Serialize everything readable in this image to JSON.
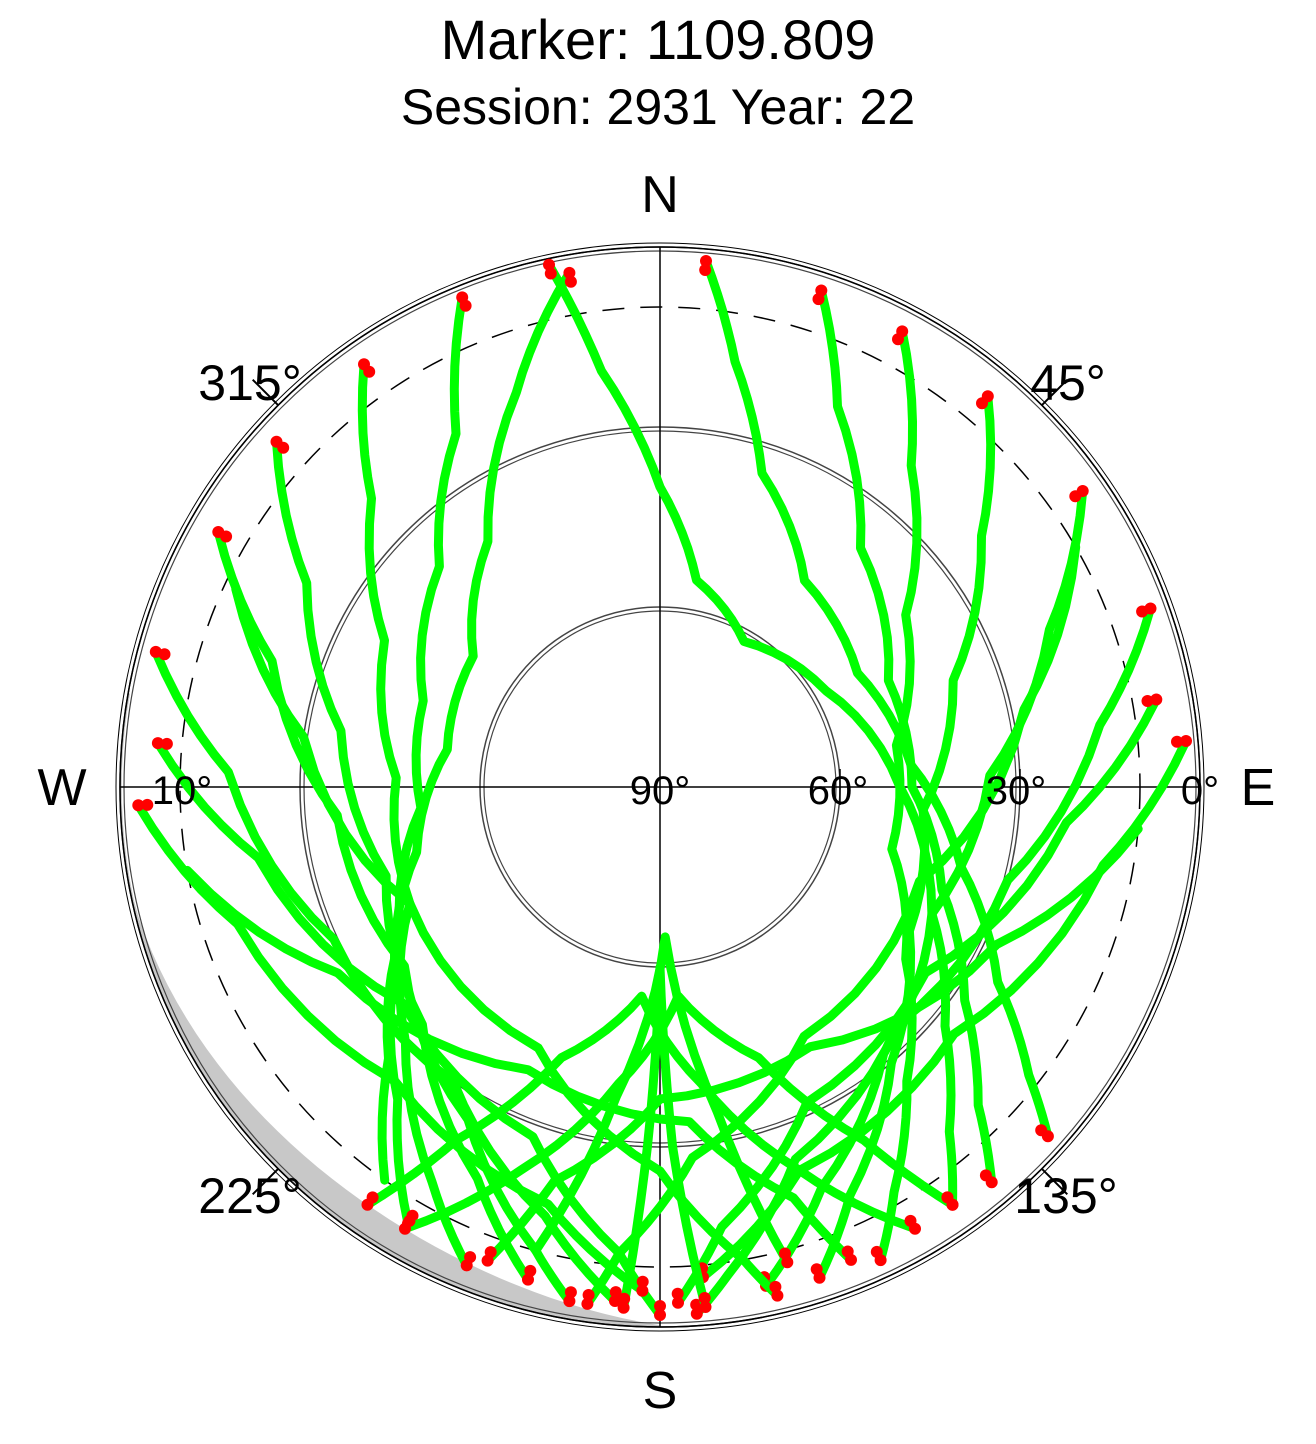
{
  "chart_data": {
    "type": "scatter",
    "title": "Marker: 1109.809",
    "subtitle": "Session: 2931 Year: 22",
    "projection": "polar skyplot (azimuth / elevation)",
    "compass": {
      "north": "N",
      "east": "E",
      "south": "S",
      "west": "W"
    },
    "azimuth_labels": [
      "45°",
      "135°",
      "225°",
      "315°"
    ],
    "elevation_labels": [
      "0°",
      "30°",
      "60°",
      "90°",
      "10°"
    ],
    "elevation_rings": [
      0,
      30,
      60
    ],
    "elevation_mask_deg": 10,
    "grid": true,
    "colors": {
      "tracked": "#00ff00",
      "low_elevation": "#ff0000",
      "horizon_obstruction": "#c8c8c8",
      "grid": "#000000"
    },
    "series": [
      {
        "color": "tracked",
        "description_values": "satellite tracks (az°, el°)",
        "tracks": [
          [
            [
              -12,
              1
            ],
            [
              -8,
              20
            ],
            [
              0,
              40
            ],
            [
              10,
              55
            ],
            [
              30,
              62
            ],
            [
              60,
              58
            ],
            [
              90,
              50
            ],
            [
              115,
              40
            ],
            [
              130,
              28
            ],
            [
              140,
              15
            ],
            [
              145,
              5
            ]
          ],
          [
            [
              5,
              2
            ],
            [
              10,
              18
            ],
            [
              18,
              35
            ],
            [
              35,
              48
            ],
            [
              60,
              52
            ],
            [
              85,
              48
            ],
            [
              105,
              38
            ],
            [
              120,
              25
            ],
            [
              128,
              12
            ],
            [
              132,
              3
            ]
          ],
          [
            [
              18,
              3
            ],
            [
              25,
              20
            ],
            [
              40,
              38
            ],
            [
              65,
              48
            ],
            [
              90,
              48
            ],
            [
              110,
              40
            ],
            [
              125,
              28
            ],
            [
              135,
              15
            ],
            [
              140,
              4
            ]
          ],
          [
            [
              28,
              4
            ],
            [
              38,
              22
            ],
            [
              55,
              40
            ],
            [
              80,
              50
            ],
            [
              105,
              50
            ],
            [
              125,
              40
            ],
            [
              140,
              26
            ],
            [
              150,
              12
            ],
            [
              155,
              3
            ]
          ],
          [
            [
              40,
              5
            ],
            [
              52,
              22
            ],
            [
              70,
              38
            ],
            [
              95,
              46
            ],
            [
              120,
              42
            ],
            [
              140,
              30
            ],
            [
              155,
              15
            ],
            [
              162,
              4
            ]
          ],
          [
            [
              55,
              4
            ],
            [
              68,
              20
            ],
            [
              88,
              35
            ],
            [
              115,
              40
            ],
            [
              140,
              32
            ],
            [
              158,
              18
            ],
            [
              168,
              5
            ]
          ],
          [
            [
              70,
              3
            ],
            [
              82,
              16
            ],
            [
              105,
              30
            ],
            [
              135,
              34
            ],
            [
              160,
              24
            ],
            [
              172,
              8
            ],
            [
              176,
              2
            ]
          ],
          [
            [
              80,
              6
            ],
            [
              95,
              22
            ],
            [
              125,
              36
            ],
            [
              155,
              32
            ],
            [
              172,
              16
            ],
            [
              178,
              4
            ]
          ],
          [
            [
              85,
              2
            ],
            [
              100,
              15
            ],
            [
              130,
              26
            ],
            [
              160,
              22
            ],
            [
              175,
              8
            ]
          ],
          [
            [
              60,
              10
            ],
            [
              78,
              28
            ],
            [
              110,
              44
            ],
            [
              150,
              42
            ],
            [
              175,
              28
            ],
            [
              185,
              12
            ],
            [
              188,
              3
            ]
          ],
          [
            [
              95,
              10
            ],
            [
              115,
              28
            ],
            [
              150,
              40
            ],
            [
              180,
              38
            ],
            [
              195,
              22
            ],
            [
              200,
              6
            ]
          ],
          [
            [
              -10,
              3
            ],
            [
              -20,
              20
            ],
            [
              -35,
              40
            ],
            [
              -55,
              52
            ],
            [
              -80,
              54
            ],
            [
              -105,
              48
            ],
            [
              -125,
              36
            ],
            [
              -140,
              22
            ],
            [
              -150,
              6
            ]
          ],
          [
            [
              -22,
              2
            ],
            [
              -30,
              22
            ],
            [
              -45,
              38
            ],
            [
              -70,
              48
            ],
            [
              -95,
              50
            ],
            [
              -120,
              40
            ],
            [
              -135,
              26
            ],
            [
              -145,
              10
            ]
          ],
          [
            [
              -35,
              4
            ],
            [
              -45,
              22
            ],
            [
              -62,
              38
            ],
            [
              -88,
              46
            ],
            [
              -115,
              44
            ],
            [
              -135,
              30
            ],
            [
              -150,
              14
            ],
            [
              -158,
              4
            ]
          ],
          [
            [
              -48,
              4
            ],
            [
              -60,
              22
            ],
            [
              -80,
              36
            ],
            [
              -108,
              42
            ],
            [
              -135,
              34
            ],
            [
              -155,
              18
            ],
            [
              -165,
              5
            ]
          ],
          [
            [
              -60,
              5
            ],
            [
              -72,
              22
            ],
            [
              -95,
              36
            ],
            [
              -125,
              38
            ],
            [
              -150,
              26
            ],
            [
              -165,
              10
            ],
            [
              -170,
              3
            ]
          ],
          [
            [
              -75,
              3
            ],
            [
              -88,
              18
            ],
            [
              -115,
              30
            ],
            [
              -145,
              30
            ],
            [
              -165,
              16
            ],
            [
              -175,
              4
            ]
          ],
          [
            [
              -85,
              6
            ],
            [
              -100,
              22
            ],
            [
              -130,
              34
            ],
            [
              -160,
              28
            ],
            [
              -175,
              12
            ],
            [
              -180,
              2
            ]
          ],
          [
            [
              -92,
              3
            ],
            [
              -108,
              16
            ],
            [
              -138,
              24
            ],
            [
              -165,
              18
            ],
            [
              -178,
              6
            ]
          ],
          [
            [
              -65,
              12
            ],
            [
              -82,
              30
            ],
            [
              -115,
              44
            ],
            [
              -155,
              42
            ],
            [
              -180,
              26
            ],
            [
              -190,
              10
            ],
            [
              -193,
              3
            ]
          ],
          [
            [
              -100,
              10
            ],
            [
              -120,
              28
            ],
            [
              -155,
              38
            ],
            [
              -185,
              34
            ],
            [
              -198,
              18
            ],
            [
              -202,
              5
            ]
          ],
          [
            [
              150,
              5
            ],
            [
              160,
              22
            ],
            [
              172,
              40
            ],
            [
              185,
              55
            ],
            [
              200,
              42
            ],
            [
              210,
              22
            ],
            [
              215,
              5
            ]
          ],
          [
            [
              -150,
              5
            ],
            [
              -160,
              22
            ],
            [
              -172,
              40
            ],
            [
              -185,
              55
            ],
            [
              -200,
              42
            ],
            [
              -210,
              22
            ],
            [
              -215,
              5
            ]
          ],
          [
            [
              175,
              3
            ],
            [
              178,
              30
            ],
            [
              180,
              60
            ],
            [
              182,
              30
            ],
            [
              184,
              3
            ]
          ],
          [
            [
              165,
              8
            ],
            [
              170,
              35
            ],
            [
              178,
              65
            ],
            [
              188,
              38
            ],
            [
              195,
              10
            ]
          ]
        ]
      }
    ]
  }
}
